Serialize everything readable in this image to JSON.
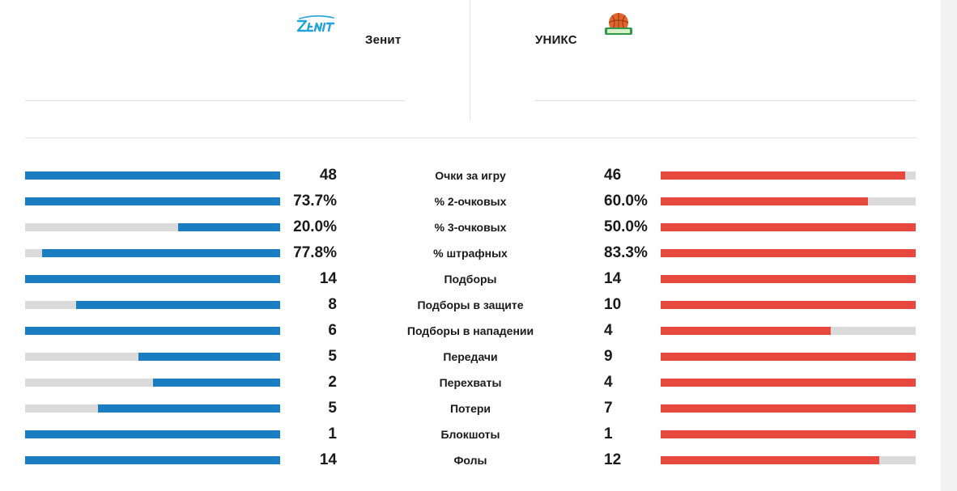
{
  "teams": {
    "home": {
      "name": "Зенит",
      "logo_icon": "zenit-logo-icon",
      "color": "#1a7dc2"
    },
    "away": {
      "name": "УНИКС",
      "logo_icon": "unics-logo-icon",
      "color": "#e8493f"
    }
  },
  "stats": [
    {
      "label": "Очки за игру",
      "home": "48",
      "away": "46",
      "home_share": 1.0,
      "away_share": 0.958
    },
    {
      "label": "% 2-очковых",
      "home": "73.7%",
      "away": "60.0%",
      "home_share": 1.0,
      "away_share": 0.814
    },
    {
      "label": "% 3-очковых",
      "home": "20.0%",
      "away": "50.0%",
      "home_share": 0.4,
      "away_share": 1.0
    },
    {
      "label": "% штрафных",
      "home": "77.8%",
      "away": "83.3%",
      "home_share": 0.934,
      "away_share": 1.0
    },
    {
      "label": "Подборы",
      "home": "14",
      "away": "14",
      "home_share": 1.0,
      "away_share": 1.0
    },
    {
      "label": "Подборы в защите",
      "home": "8",
      "away": "10",
      "home_share": 0.8,
      "away_share": 1.0
    },
    {
      "label": "Подборы в нападении",
      "home": "6",
      "away": "4",
      "home_share": 1.0,
      "away_share": 0.667
    },
    {
      "label": "Передачи",
      "home": "5",
      "away": "9",
      "home_share": 0.556,
      "away_share": 1.0
    },
    {
      "label": "Перехваты",
      "home": "2",
      "away": "4",
      "home_share": 0.5,
      "away_share": 1.0
    },
    {
      "label": "Потери",
      "home": "5",
      "away": "7",
      "home_share": 0.714,
      "away_share": 1.0
    },
    {
      "label": "Блокшоты",
      "home": "1",
      "away": "1",
      "home_share": 1.0,
      "away_share": 1.0
    },
    {
      "label": "Фолы",
      "home": "14",
      "away": "12",
      "home_share": 1.0,
      "away_share": 0.857
    }
  ]
}
